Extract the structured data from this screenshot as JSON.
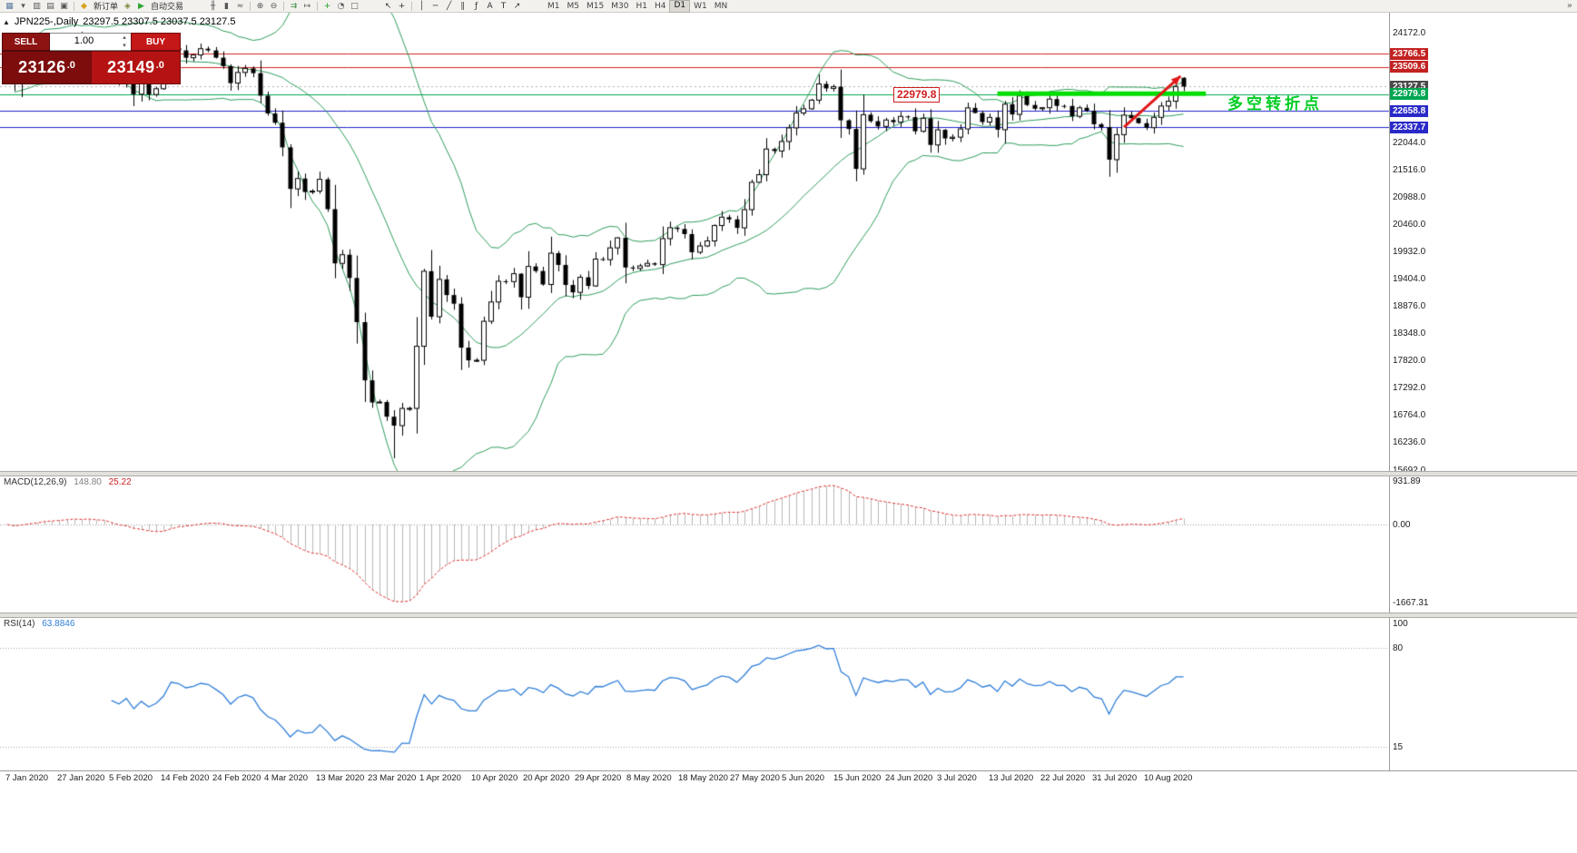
{
  "toolbar": {
    "items": [
      {
        "t": "icon",
        "name": "new-chart-icon",
        "glyph": "▦",
        "color": "#5b7aa0"
      },
      {
        "t": "icon",
        "name": "profiles-icon",
        "glyph": "▾",
        "color": "#555555"
      },
      {
        "t": "icon",
        "name": "market-watch-icon",
        "glyph": "▥",
        "color": "#555555"
      },
      {
        "t": "icon",
        "name": "navigator-icon",
        "glyph": "▤",
        "color": "#555555"
      },
      {
        "t": "icon",
        "name": "terminal-icon",
        "glyph": "▣",
        "color": "#555555"
      },
      {
        "t": "sep"
      },
      {
        "t": "icon",
        "name": "new-order-icon",
        "glyph": "◆",
        "color": "#d9a11a"
      },
      {
        "t": "label",
        "name": "new-order-button",
        "text": "新订单"
      },
      {
        "t": "icon",
        "name": "metaeditor-icon",
        "glyph": "◈",
        "color": "#7a8a3a"
      },
      {
        "t": "icon",
        "name": "autotrading-icon",
        "glyph": "▶",
        "color": "#2aa52a"
      },
      {
        "t": "label",
        "name": "autotrading-button",
        "text": "自动交易"
      },
      {
        "t": "gap"
      },
      {
        "t": "icon",
        "name": "bar-chart-icon",
        "glyph": "╫",
        "color": "#555555"
      },
      {
        "t": "icon",
        "name": "candlestick-chart-icon",
        "glyph": "▮",
        "color": "#555555"
      },
      {
        "t": "icon",
        "name": "line-chart-icon",
        "glyph": "≈",
        "color": "#555555"
      },
      {
        "t": "sep"
      },
      {
        "t": "icon",
        "name": "zoom-in-icon",
        "glyph": "⊕",
        "color": "#555555"
      },
      {
        "t": "icon",
        "name": "zoom-out-icon",
        "glyph": "⊖",
        "color": "#555555"
      },
      {
        "t": "sep"
      },
      {
        "t": "icon",
        "name": "auto-scroll-icon",
        "glyph": "⇉",
        "color": "#3c8a3c"
      },
      {
        "t": "icon",
        "name": "chart-shift-icon",
        "glyph": "↦",
        "color": "#555555"
      },
      {
        "t": "sep"
      },
      {
        "t": "icon",
        "name": "indicators-icon",
        "glyph": "+",
        "color": "#1e9e1e"
      },
      {
        "t": "icon",
        "name": "periods-icon",
        "glyph": "◔",
        "color": "#555555"
      },
      {
        "t": "icon",
        "name": "templates-icon",
        "glyph": "□",
        "color": "#555555"
      },
      {
        "t": "gap"
      },
      {
        "t": "icon",
        "name": "cursor-icon",
        "glyph": "↖",
        "color": "#333333"
      },
      {
        "t": "icon",
        "name": "crosshair-icon",
        "glyph": "+",
        "color": "#333333"
      },
      {
        "t": "sep"
      },
      {
        "t": "icon",
        "name": "vertical-line-icon",
        "glyph": "│",
        "color": "#333333"
      },
      {
        "t": "icon",
        "name": "horizontal-line-icon",
        "glyph": "─",
        "color": "#333333"
      },
      {
        "t": "icon",
        "name": "trendline-icon",
        "glyph": "╱",
        "color": "#333333"
      },
      {
        "t": "icon",
        "name": "channel-icon",
        "glyph": "∥",
        "color": "#333333"
      },
      {
        "t": "icon",
        "name": "fibonacci-icon",
        "glyph": "ƒ",
        "color": "#333333"
      },
      {
        "t": "icon",
        "name": "text-icon",
        "glyph": "A",
        "color": "#333333"
      },
      {
        "t": "icon",
        "name": "text-label-icon",
        "glyph": "T",
        "color": "#333333"
      },
      {
        "t": "icon",
        "name": "arrows-icon",
        "glyph": "↗",
        "color": "#333333"
      },
      {
        "t": "gap"
      }
    ],
    "timeframes": [
      "M1",
      "M5",
      "M15",
      "M30",
      "H1",
      "H4",
      "D1",
      "W1",
      "MN"
    ],
    "active_timeframe": "D1",
    "overflow_glyph": "»"
  },
  "chart": {
    "collapse_glyph": "▲",
    "title_symbol": "JPN225-,Daily",
    "title_ohlc": "23297.5 23307.5 23037.5 23127.5"
  },
  "trade_panel": {
    "sell_label": "SELL",
    "buy_label": "BUY",
    "volume": "1.00",
    "spin_up_glyph": "▴",
    "spin_down_glyph": "▾",
    "sell_price": "23126",
    "sell_price_dec": ".0",
    "buy_price": "23149",
    "buy_price_dec": ".0"
  },
  "annotations": {
    "price_callout": "22979.8",
    "turning_point": "多空转折点"
  },
  "indicators": {
    "macd": {
      "label": "MACD(12,26,9)",
      "value_main": "148.80",
      "value_signal": "25.22",
      "scale": {
        "top": "931.89",
        "zero": "0.00",
        "bottom": "-1667.31"
      }
    },
    "rsi": {
      "label": "RSI(14)",
      "value": "63.8846",
      "scale_labels": [
        "100",
        "80",
        "15"
      ]
    }
  },
  "price_scale": {
    "plain_labels": [
      "24172.0",
      "22044.0",
      "21516.0",
      "20988.0",
      "20460.0",
      "19932.0",
      "19404.0",
      "18876.0",
      "18348.0",
      "17820.0",
      "17292.0",
      "16764.0",
      "16236.0",
      "15692.0"
    ],
    "markers": [
      {
        "name": "resistance-upper",
        "text": "23766.5",
        "bg": "#c32222"
      },
      {
        "name": "resistance-lower",
        "text": "23509.6",
        "bg": "#c32222"
      },
      {
        "name": "current-price",
        "text": "23127.5",
        "bg": "#4a4a4a"
      },
      {
        "name": "pivot-green",
        "text": "22979.8",
        "bg": "#00a651"
      },
      {
        "name": "support-upper",
        "text": "22658.8",
        "bg": "#2a2ac8"
      },
      {
        "name": "support-lower",
        "text": "22337.7",
        "bg": "#2a2ac8"
      }
    ]
  },
  "x_axis": {
    "labels": [
      "7 Jan 2020",
      "27 Jan 2020",
      "5 Feb 2020",
      "14 Feb 2020",
      "24 Feb 2020",
      "4 Mar 2020",
      "13 Mar 2020",
      "23 Mar 2020",
      "1 Apr 2020",
      "10 Apr 2020",
      "20 Apr 2020",
      "29 Apr 2020",
      "8 May 2020",
      "18 May 2020",
      "27 May 2020",
      "5 Jun 2020",
      "15 Jun 2020",
      "24 Jun 2020",
      "3 Jul 2020",
      "13 Jul 2020",
      "22 Jul 2020",
      "31 Jul 2020",
      "10 Aug 2020"
    ]
  },
  "chart_data": {
    "type": "candlestick",
    "symbol": "JPN225-",
    "period": "Daily",
    "current_ohlc": {
      "open": 23297.5,
      "high": 23307.5,
      "low": 23037.5,
      "close": 23127.5
    },
    "first_open": 23330,
    "extreme_high": 24130,
    "extreme_low": 15920,
    "closes": [
      23575,
      23204,
      23740,
      23851,
      23850,
      24025,
      23917,
      23933,
      24041,
      24084,
      23864,
      24031,
      23795,
      23827,
      23344,
      23216,
      23379,
      22978,
      23205,
      22972,
      23085,
      23320,
      23874,
      23828,
      23686,
      23740,
      23861,
      23828,
      23687,
      23523,
      23194,
      23401,
      23479,
      23387,
      22950,
      22605,
      22426,
      21948,
      21143,
      21344,
      21083,
      21100,
      21329,
      20750,
      19699,
      19867,
      19416,
      18560,
      17431,
      17002,
      17011,
      16727,
      16553,
      16887,
      16888,
      18092,
      19547,
      18665,
      19389,
      19085,
      18917,
      18065,
      17819,
      17820,
      18576,
      18950,
      19353,
      19346,
      19499,
      19043,
      19639,
      19551,
      19290,
      19897,
      19669,
      19281,
      19137,
      19429,
      19262,
      19783,
      19771,
      20000,
      20194,
      19619,
      19600,
      19650,
      19700,
      19675,
      20179,
      20391,
      20366,
      20267,
      19915,
      20037,
      20134,
      20433,
      20595,
      20552,
      20388,
      20741,
      21271,
      21419,
      21916,
      21878,
      22062,
      22326,
      22614,
      22696,
      22864,
      23178,
      23091,
      23125,
      22473,
      22305,
      21531,
      22582,
      22456,
      22355,
      22479,
      22437,
      22549,
      22534,
      22260,
      22512,
      21995,
      22288,
      22122,
      22146,
      22306,
      22714,
      22615,
      22439,
      22529,
      22291,
      22785,
      22587,
      22946,
      22770,
      22697,
      22717,
      22884,
      22752,
      22751,
      22550,
      22715,
      22657,
      22397,
      22339,
      21710,
      22195,
      22573,
      22515,
      22418,
      22330,
      22530,
      22750,
      22843,
      23128,
      23127.5
    ],
    "bollinger": {
      "period": 20,
      "deviation": 2
    },
    "macd": {
      "fast": 12,
      "slow": 26,
      "signal": 9
    },
    "rsi": {
      "period": 14,
      "levels": [
        80,
        15
      ]
    },
    "hlines": [
      {
        "price": 23766.5,
        "color": "#d02020",
        "style": "solid"
      },
      {
        "price": 23509.6,
        "color": "#d02020",
        "style": "solid"
      },
      {
        "price": 23127.5,
        "color": "#b0b0b0",
        "style": "dot"
      },
      {
        "price": 22979.8,
        "color": "#00a651",
        "style": "solid"
      },
      {
        "price": 22658.8,
        "color": "#2020cc",
        "style": "solid"
      },
      {
        "price": 22337.7,
        "color": "#2020cc",
        "style": "solid"
      }
    ],
    "support_zone_line": {
      "price": 22990,
      "start_index": 133,
      "end_index": 161,
      "color": "#00dd00",
      "width": 5
    },
    "trend_arrow": {
      "from_index": 150,
      "from_price": 22340,
      "to_index": 157.6,
      "to_price": 23330,
      "color": "#e01818",
      "width": 3
    }
  }
}
